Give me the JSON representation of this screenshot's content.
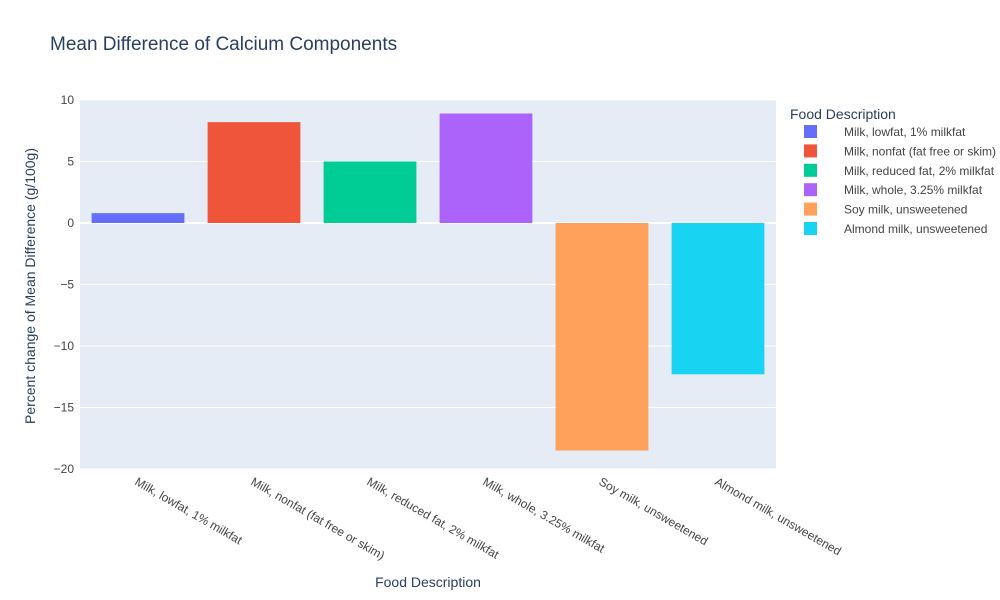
{
  "chart_data": {
    "type": "bar",
    "title": "Mean Difference of Calcium Components",
    "xlabel": "Food Description",
    "ylabel": "Percent change of Mean Difference (g/100g)",
    "ylim": [
      -20,
      10
    ],
    "yticks": [
      10,
      5,
      0,
      -5,
      -10,
      -15,
      -20
    ],
    "ytick_labels": [
      "10",
      "5",
      "0",
      "−5",
      "−10",
      "−15",
      "−20"
    ],
    "grid": true,
    "legend_title": "Food Description",
    "legend_position": "right",
    "categories": [
      "Milk, lowfat, 1% milkfat",
      "Milk, nonfat (fat free or skim)",
      "Milk, reduced fat, 2% milkfat",
      "Milk, whole, 3.25% milkfat",
      "Soy milk, unsweetened",
      "Almond milk, unsweetened"
    ],
    "series": [
      {
        "name": "Milk, lowfat, 1% milkfat",
        "category_index": 0,
        "value": 0.8,
        "color": "#636efa"
      },
      {
        "name": "Milk, nonfat (fat free or skim)",
        "category_index": 1,
        "value": 8.2,
        "color": "#ef553b"
      },
      {
        "name": "Milk, reduced fat, 2% milkfat",
        "category_index": 2,
        "value": 5.0,
        "color": "#00cc96"
      },
      {
        "name": "Milk, whole, 3.25% milkfat",
        "category_index": 3,
        "value": 8.9,
        "color": "#ab63fa"
      },
      {
        "name": "Soy milk, unsweetened",
        "category_index": 4,
        "value": -18.5,
        "color": "#ffa15a"
      },
      {
        "name": "Almond milk, unsweetened",
        "category_index": 5,
        "value": -12.3,
        "color": "#19d3f3"
      }
    ],
    "colors": {
      "plot_background": "#e5ecf6",
      "grid": "#ffffff",
      "text": "#444444",
      "title": "#2a3f5f"
    }
  }
}
